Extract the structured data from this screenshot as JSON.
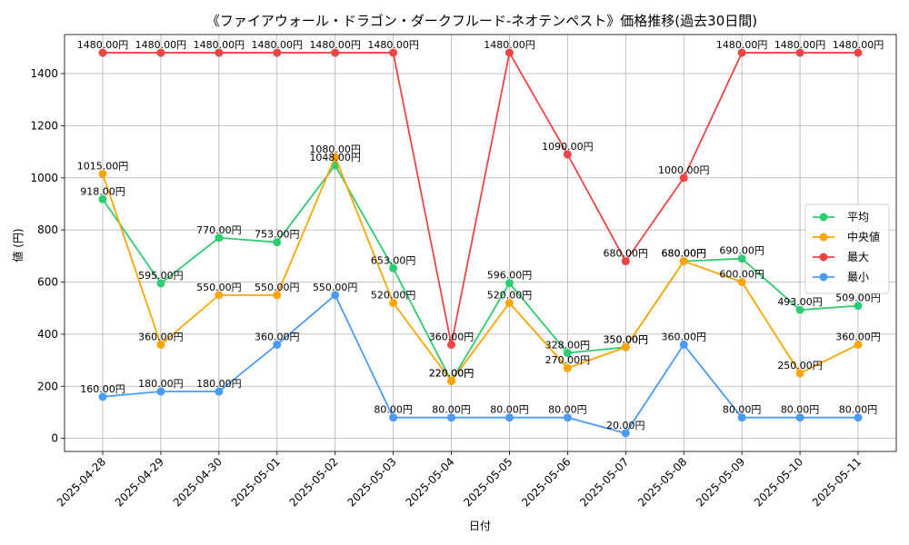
{
  "chart_data": {
    "type": "line",
    "title": "《ファイアウォール・ドラゴン・ダークフルード-ネオテンペスト》価格推移(過去30日間)",
    "xlabel": "日付",
    "ylabel": "値 (円)",
    "ylim": [
      -50,
      1550
    ],
    "yticks": [
      0,
      200,
      400,
      600,
      800,
      1000,
      1200,
      1400
    ],
    "grid": true,
    "legend_position": "center-right",
    "value_suffix": "円",
    "categories": [
      "2025-04-28",
      "2025-04-29",
      "2025-04-30",
      "2025-05-01",
      "2025-05-02",
      "2025-05-03",
      "2025-05-04",
      "2025-05-05",
      "2025-05-06",
      "2025-05-07",
      "2025-05-08",
      "2025-05-09",
      "2025-05-10",
      "2025-05-11"
    ],
    "series": [
      {
        "name": "平均",
        "color": "#2ecc71",
        "values": [
          918,
          595,
          770,
          753,
          1048,
          653,
          220,
          596,
          328,
          350,
          680,
          690,
          493,
          509
        ]
      },
      {
        "name": "中央値",
        "color": "#ffa500",
        "values": [
          1015,
          360,
          550,
          550,
          1080,
          520,
          220,
          520,
          270,
          350,
          680,
          600,
          250,
          360
        ]
      },
      {
        "name": "最大",
        "color": "#ef4444",
        "values": [
          1480,
          1480,
          1480,
          1480,
          1480,
          1480,
          360,
          1480,
          1090,
          680,
          1000,
          1480,
          1480,
          1480
        ]
      },
      {
        "name": "最小",
        "color": "#4a9bf5",
        "values": [
          160,
          180,
          180,
          360,
          550,
          80,
          80,
          80,
          80,
          20,
          360,
          80,
          80,
          80
        ]
      }
    ]
  }
}
